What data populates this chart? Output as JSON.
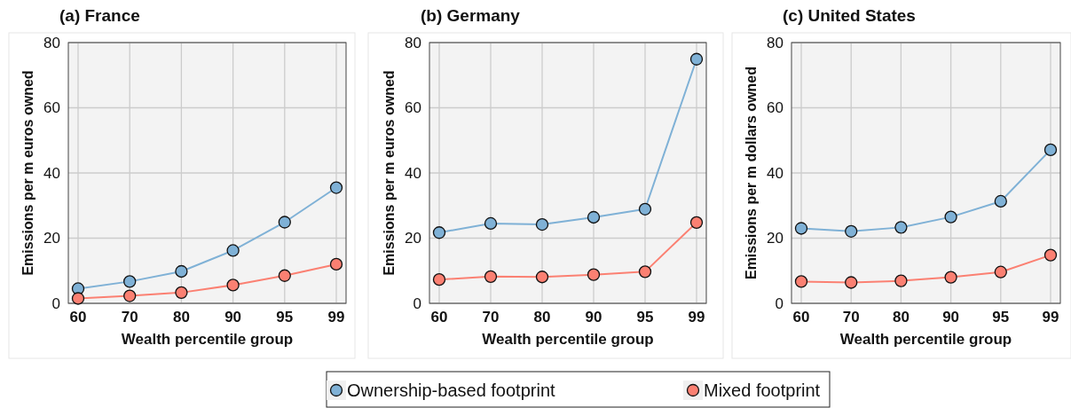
{
  "chart_data": [
    {
      "type": "line",
      "title": "(a) France",
      "xlabel": "Wealth percentile group",
      "ylabel": "Emissions per m euros owned",
      "categories": [
        "60",
        "70",
        "80",
        "90",
        "95",
        "99"
      ],
      "ylim": [
        0,
        80
      ],
      "yticks": [
        0,
        20,
        40,
        60,
        80
      ],
      "grid": true,
      "marker": "circle",
      "legend": "bottom",
      "series": [
        {
          "name": "Ownership-based footprint",
          "color": "#7fb1d6",
          "values": [
            4.5,
            6.7,
            9.8,
            16.2,
            24.9,
            35.5
          ]
        },
        {
          "name": "Mixed footprint",
          "color": "#fb8072",
          "values": [
            1.5,
            2.3,
            3.3,
            5.6,
            8.5,
            12.0
          ]
        }
      ]
    },
    {
      "type": "line",
      "title": "(b) Germany",
      "xlabel": "Wealth percentile group",
      "ylabel": "Emissions per m euros owned",
      "categories": [
        "60",
        "70",
        "80",
        "90",
        "95",
        "99"
      ],
      "ylim": [
        0,
        80
      ],
      "yticks": [
        0,
        20,
        40,
        60,
        80
      ],
      "grid": true,
      "marker": "circle",
      "series": [
        {
          "color": "#7fb1d6",
          "values": [
            21.7,
            24.5,
            24.2,
            26.4,
            28.9,
            74.9
          ]
        },
        {
          "color": "#fb8072",
          "values": [
            7.3,
            8.2,
            8.1,
            8.8,
            9.7,
            24.8
          ]
        }
      ]
    },
    {
      "type": "line",
      "title": "(c) United States",
      "xlabel": "Wealth percentile group",
      "ylabel": "Emissions per m dollars owned",
      "categories": [
        "60",
        "70",
        "80",
        "90",
        "95",
        "99"
      ],
      "ylim": [
        0,
        80
      ],
      "yticks": [
        0,
        20,
        40,
        60,
        80
      ],
      "grid": true,
      "marker": "circle",
      "series": [
        {
          "color": "#7fb1d6",
          "values": [
            23.0,
            22.1,
            23.3,
            26.5,
            31.3,
            47.1
          ]
        },
        {
          "color": "#fb8072",
          "values": [
            6.7,
            6.4,
            6.9,
            8.0,
            9.6,
            14.8
          ]
        }
      ]
    }
  ]
}
